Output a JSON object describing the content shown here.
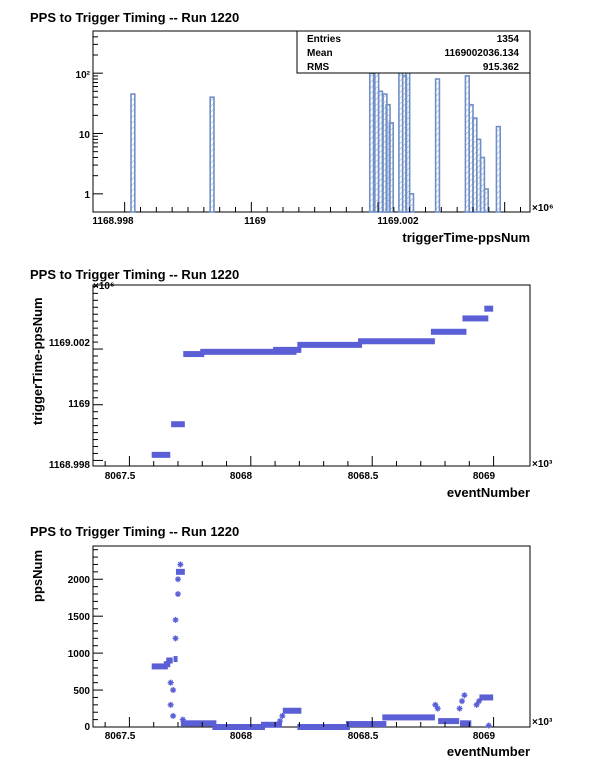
{
  "chart_data": [
    {
      "type": "histogram",
      "title": "PPS to Trigger Timing -- Run 1220",
      "xlabel": "triggerTime-ppsNum",
      "ylabel": "",
      "x_exponent": "×10⁶",
      "x_ticks": [
        "1168.998",
        "1169",
        "1169.002"
      ],
      "y_ticks": [
        "1",
        "10",
        "10²"
      ],
      "yscale": "log",
      "xlim": [
        1168.9975,
        1169.0044
      ],
      "ylim": [
        0.5,
        500
      ],
      "stats": {
        "entries_label": "Entries",
        "entries": "1354",
        "mean_label": "Mean",
        "mean": "1169002036.134",
        "rms_label": "RMS",
        "rms": "915.362"
      },
      "bins": [
        {
          "x": 1168.9981,
          "y": 45
        },
        {
          "x": 1168.99935,
          "y": 40
        },
        {
          "x": 1169.00187,
          "y": 100
        },
        {
          "x": 1169.00195,
          "y": 280
        },
        {
          "x": 1169.00201,
          "y": 50
        },
        {
          "x": 1169.00208,
          "y": 45
        },
        {
          "x": 1169.00213,
          "y": 30
        },
        {
          "x": 1169.00218,
          "y": 15
        },
        {
          "x": 1169.00233,
          "y": 220
        },
        {
          "x": 1169.00239,
          "y": 90
        },
        {
          "x": 1169.00244,
          "y": 280
        },
        {
          "x": 1169.0025,
          "y": 1
        },
        {
          "x": 1169.00291,
          "y": 80
        },
        {
          "x": 1169.00338,
          "y": 90
        },
        {
          "x": 1169.00344,
          "y": 30
        },
        {
          "x": 1169.0035,
          "y": 18
        },
        {
          "x": 1169.00356,
          "y": 8
        },
        {
          "x": 1169.00362,
          "y": 4
        },
        {
          "x": 1169.00368,
          "y": 1.2
        },
        {
          "x": 1169.00387,
          "y": 13
        }
      ]
    },
    {
      "type": "scatter",
      "title": "PPS to Trigger Timing -- Run 1220",
      "xlabel": "eventNumber",
      "ylabel": "triggerTime-ppsNum",
      "x_exponent": "×10³",
      "y_exponent": "×10⁶",
      "x_ticks": [
        "8067.5",
        "8068",
        "8068.5",
        "8069"
      ],
      "y_ticks": [
        "1168.998",
        "1169",
        "1169.002"
      ],
      "xlim": [
        8067.35,
        8069.15
      ],
      "ylim": [
        1168.9978,
        1169.0043
      ],
      "segments": [
        {
          "x0": 8067.6,
          "x1": 8067.66,
          "y": 1168.9982
        },
        {
          "x0": 8067.68,
          "x1": 8067.72,
          "y": 1168.9993
        },
        {
          "x0": 8067.73,
          "x1": 8067.8,
          "y": 1169.00182
        },
        {
          "x0": 8067.8,
          "x1": 8068.18,
          "y": 1169.0019
        },
        {
          "x0": 8068.1,
          "x1": 8068.2,
          "y": 1169.00197
        },
        {
          "x0": 8068.2,
          "x1": 8068.45,
          "y": 1169.00215
        },
        {
          "x0": 8068.45,
          "x1": 8068.75,
          "y": 1169.00228
        },
        {
          "x0": 8068.75,
          "x1": 8068.88,
          "y": 1169.00262
        },
        {
          "x0": 8068.88,
          "x1": 8068.97,
          "y": 1169.0031
        },
        {
          "x0": 8068.97,
          "x1": 8068.99,
          "y": 1169.00345
        }
      ]
    },
    {
      "type": "scatter",
      "title": "PPS to Trigger Timing -- Run 1220",
      "xlabel": "eventNumber",
      "ylabel": "ppsNum",
      "x_exponent": "×10³",
      "x_ticks": [
        "8067.5",
        "8068",
        "8068.5",
        "8069"
      ],
      "y_ticks": [
        "0",
        "500",
        "1000",
        "1500",
        "2000"
      ],
      "xlim": [
        8067.35,
        8069.15
      ],
      "ylim": [
        0,
        2450
      ],
      "segments": [
        {
          "x0": 8067.6,
          "x1": 8067.65,
          "y": 820
        },
        {
          "x0": 8067.65,
          "x1": 8067.66,
          "y": 850
        },
        {
          "x0": 8067.66,
          "x1": 8067.67,
          "y": 900
        },
        {
          "x0": 8067.69,
          "x1": 8067.69,
          "y": 920
        },
        {
          "x0": 8067.7,
          "x1": 8067.72,
          "y": 2100
        },
        {
          "x0": 8067.72,
          "x1": 8067.85,
          "y": 50
        },
        {
          "x0": 8067.85,
          "x1": 8068.05,
          "y": 0
        },
        {
          "x0": 8068.05,
          "x1": 8068.12,
          "y": 30
        },
        {
          "x0": 8068.14,
          "x1": 8068.2,
          "y": 220
        },
        {
          "x0": 8068.2,
          "x1": 8068.4,
          "y": 0
        },
        {
          "x0": 8068.4,
          "x1": 8068.55,
          "y": 40
        },
        {
          "x0": 8068.55,
          "x1": 8068.75,
          "y": 130
        },
        {
          "x0": 8068.78,
          "x1": 8068.85,
          "y": 80
        },
        {
          "x0": 8068.87,
          "x1": 8068.9,
          "y": 50
        },
        {
          "x0": 8068.95,
          "x1": 8068.99,
          "y": 400
        }
      ],
      "points": [
        {
          "x": 8067.67,
          "y": 600
        },
        {
          "x": 8067.67,
          "y": 300
        },
        {
          "x": 8067.68,
          "y": 150
        },
        {
          "x": 8067.68,
          "y": 500
        },
        {
          "x": 8067.69,
          "y": 1200
        },
        {
          "x": 8067.69,
          "y": 1450
        },
        {
          "x": 8067.7,
          "y": 1800
        },
        {
          "x": 8067.7,
          "y": 2000
        },
        {
          "x": 8067.71,
          "y": 2200
        },
        {
          "x": 8067.72,
          "y": 100
        },
        {
          "x": 8068.12,
          "y": 80
        },
        {
          "x": 8068.13,
          "y": 150
        },
        {
          "x": 8068.76,
          "y": 300
        },
        {
          "x": 8068.77,
          "y": 250
        },
        {
          "x": 8068.86,
          "y": 250
        },
        {
          "x": 8068.87,
          "y": 350
        },
        {
          "x": 8068.88,
          "y": 430
        },
        {
          "x": 8068.93,
          "y": 300
        },
        {
          "x": 8068.94,
          "y": 350
        },
        {
          "x": 8068.98,
          "y": 20
        }
      ]
    }
  ]
}
